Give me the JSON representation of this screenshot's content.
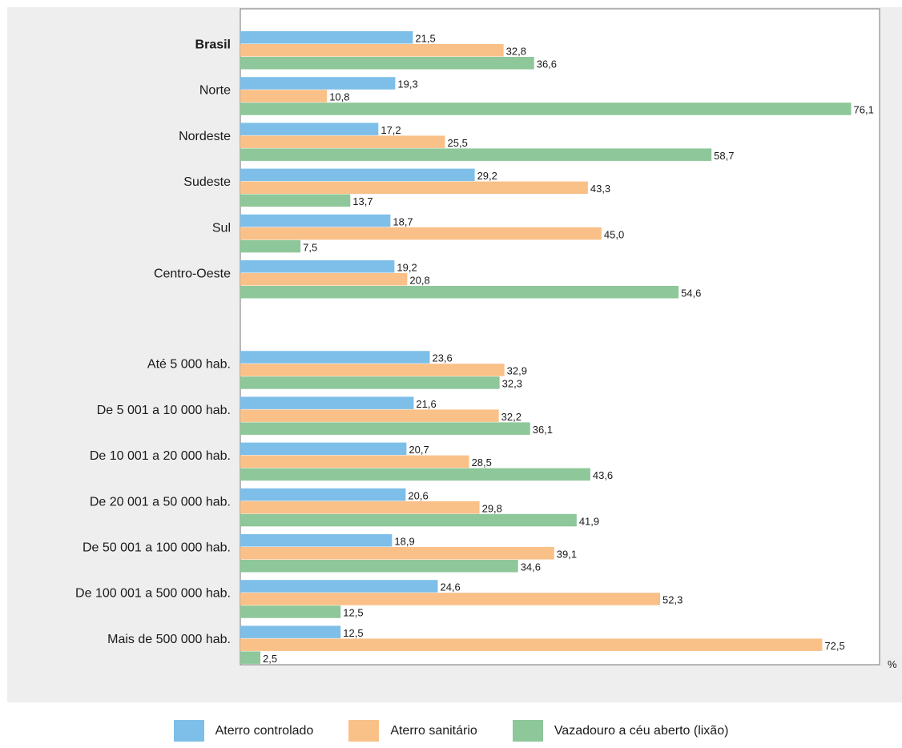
{
  "chart_data": {
    "type": "bar",
    "orientation": "horizontal",
    "unit": "%",
    "xlim": [
      0,
      80
    ],
    "grid": false,
    "legend_position": "bottom-center",
    "series": [
      {
        "name": "Aterro controlado",
        "color": "#7ebfe9"
      },
      {
        "name": "Aterro sanitário",
        "color": "#f9c088"
      },
      {
        "name": "Vazadouro a céu aberto (lixão)",
        "color": "#8dc79a"
      }
    ],
    "groups": [
      {
        "categories": [
          {
            "label": "Brasil",
            "bold": true,
            "values": [
              21.5,
              32.8,
              36.6
            ],
            "labels": [
              "21,5",
              "32,8",
              "36,6"
            ]
          },
          {
            "label": "Norte",
            "values": [
              19.3,
              10.8,
              76.1
            ],
            "labels": [
              "19,3",
              "10,8",
              "76,1"
            ]
          },
          {
            "label": "Nordeste",
            "values": [
              17.2,
              25.5,
              58.7
            ],
            "labels": [
              "17,2",
              "25,5",
              "58,7"
            ]
          },
          {
            "label": "Sudeste",
            "values": [
              29.2,
              43.3,
              13.7
            ],
            "labels": [
              "29,2",
              "43,3",
              "13,7"
            ]
          },
          {
            "label": "Sul",
            "values": [
              18.7,
              45.0,
              7.5
            ],
            "labels": [
              "18,7",
              "45,0",
              "7,5"
            ]
          },
          {
            "label": "Centro-Oeste",
            "values": [
              19.2,
              20.8,
              54.6
            ],
            "labels": [
              "19,2",
              "20,8",
              "54,6"
            ]
          }
        ]
      },
      {
        "categories": [
          {
            "label": "Até 5 000 hab.",
            "values": [
              23.6,
              32.9,
              32.3
            ],
            "labels": [
              "23,6",
              "32,9",
              "32,3"
            ]
          },
          {
            "label": "De 5 001 a 10 000 hab.",
            "values": [
              21.6,
              32.2,
              36.1
            ],
            "labels": [
              "21,6",
              "32,2",
              "36,1"
            ]
          },
          {
            "label": "De 10 001 a 20 000 hab.",
            "values": [
              20.7,
              28.5,
              43.6
            ],
            "labels": [
              "20,7",
              "28,5",
              "43,6"
            ]
          },
          {
            "label": "De 20 001 a 50 000 hab.",
            "values": [
              20.6,
              29.8,
              41.9
            ],
            "labels": [
              "20,6",
              "29,8",
              "41,9"
            ]
          },
          {
            "label": "De 50 001 a 100 000 hab.",
            "values": [
              18.9,
              39.1,
              34.6
            ],
            "labels": [
              "18,9",
              "39,1",
              "34,6"
            ]
          },
          {
            "label": "De 100 001 a 500 000 hab.",
            "values": [
              24.6,
              52.3,
              12.5
            ],
            "labels": [
              "24,6",
              "52,3",
              "12,5"
            ]
          },
          {
            "label": "Mais de 500 000 hab.",
            "values": [
              12.5,
              72.5,
              2.5
            ],
            "labels": [
              "12,5",
              "72,5",
              "2,5"
            ]
          }
        ]
      }
    ]
  }
}
